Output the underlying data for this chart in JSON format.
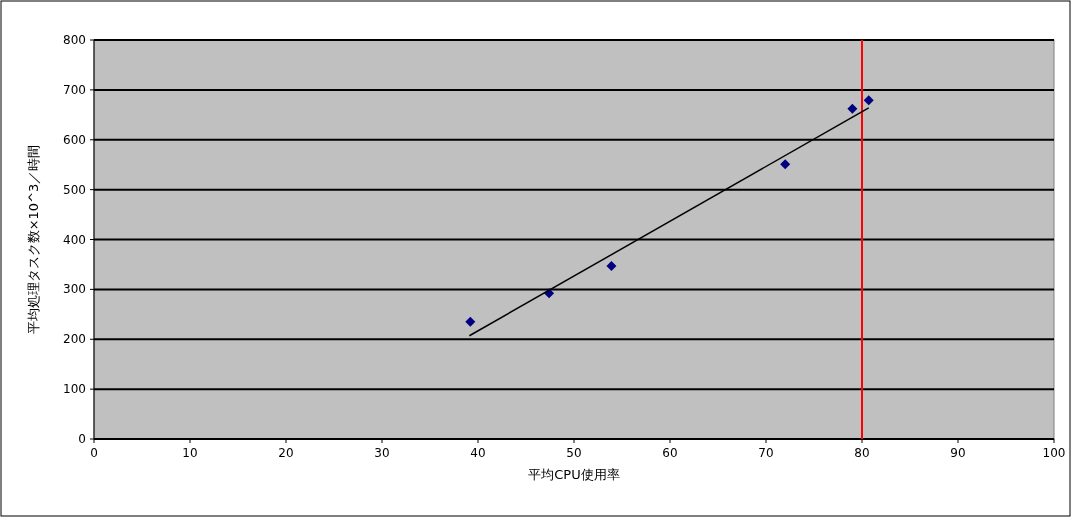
{
  "chart_data": {
    "type": "scatter",
    "xlabel": "平均CPU使用率",
    "ylabel": "平均処理タスク数×10^3／時間",
    "xlim": [
      0,
      100
    ],
    "xticks": [
      0,
      10,
      20,
      30,
      40,
      50,
      60,
      70,
      80,
      90,
      100
    ],
    "ylim": [
      0,
      800
    ],
    "yticks": [
      0,
      100,
      200,
      300,
      400,
      500,
      600,
      700,
      800
    ],
    "grid": "y",
    "series": [
      {
        "marker": "diamond",
        "color": "#000080",
        "x": [
          39.2,
          47.4,
          53.9,
          72.0,
          79.0,
          80.7
        ],
        "values": [
          235,
          292,
          347,
          551,
          662,
          679
        ]
      },
      {
        "type": "line",
        "color": "#000000",
        "x": [
          39.1,
          80.7
        ],
        "values": [
          207,
          664
        ]
      }
    ],
    "ref_lines": [
      {
        "axis": "x",
        "value": 80,
        "color": "#ff0000"
      }
    ]
  }
}
